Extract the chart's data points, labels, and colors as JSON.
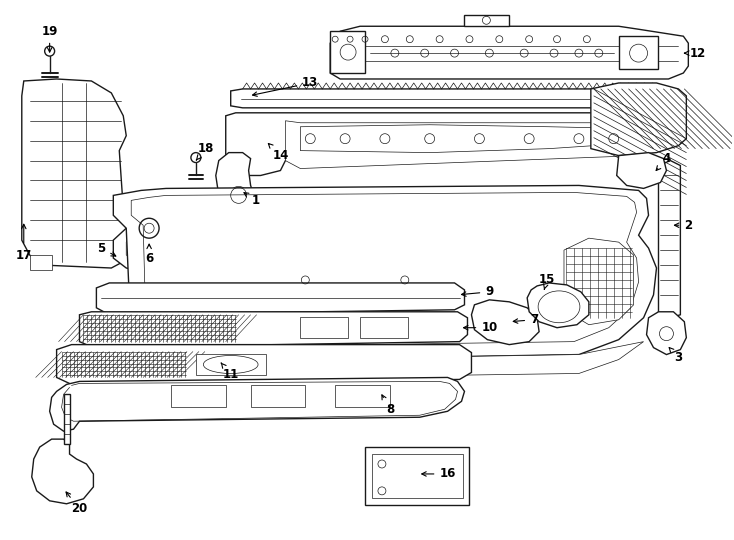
{
  "bg_color": "#ffffff",
  "line_color": "#1a1a1a",
  "figsize": [
    7.34,
    5.4
  ],
  "dpi": 100,
  "lw_main": 1.0,
  "lw_thin": 0.5,
  "lw_thick": 1.4,
  "font_size": 8.5
}
